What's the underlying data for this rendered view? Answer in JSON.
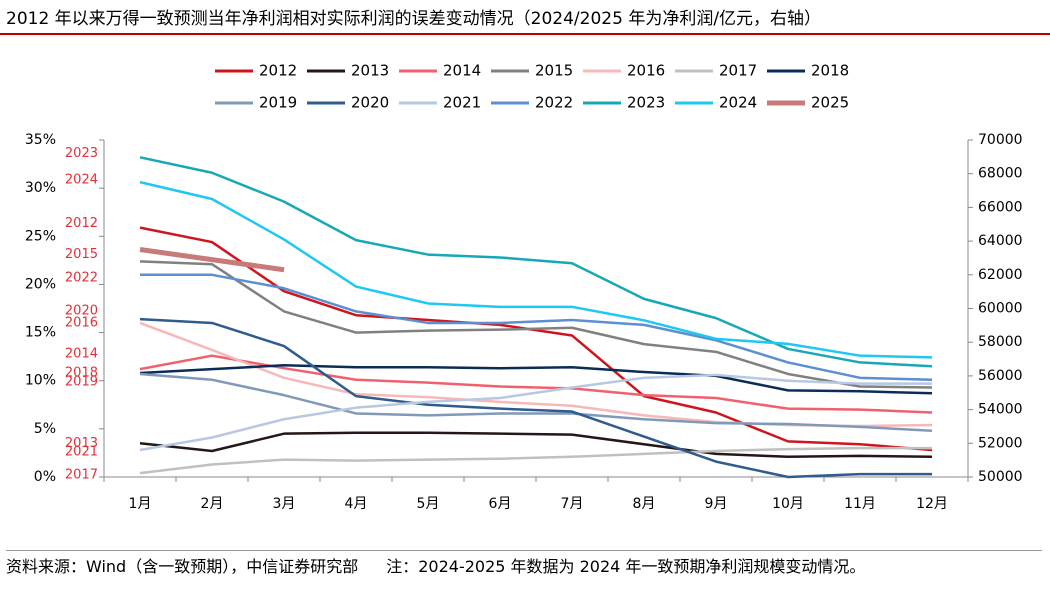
{
  "chart_data": {
    "type": "line",
    "title": "2012 年以来万得一致预测当年净利润相对实际利润的误差变动情况（2024/2025 年为净利润/亿元，右轴）",
    "source": "资料来源：Wind（含一致预期），中信证券研究部",
    "note": "注：2024-2025 年数据为 2024 年一致预期净利润规模变动情况。",
    "categories": [
      "1月",
      "2月",
      "3月",
      "4月",
      "5月",
      "6月",
      "7月",
      "8月",
      "9月",
      "10月",
      "11月",
      "12月"
    ],
    "ylim": [
      0,
      35
    ],
    "yticks": [
      {
        "value": 0,
        "label": "0%"
      },
      {
        "value": 5,
        "label": "5%"
      },
      {
        "value": 10,
        "label": "10%"
      },
      {
        "value": 15,
        "label": "15%"
      },
      {
        "value": 20,
        "label": "20%"
      },
      {
        "value": 25,
        "label": "25%"
      },
      {
        "value": 30,
        "label": "30%"
      },
      {
        "value": 35,
        "label": "35%"
      }
    ],
    "y2lim": [
      50000,
      70000
    ],
    "y2ticks": [
      50000,
      52000,
      54000,
      56000,
      58000,
      60000,
      62000,
      64000,
      66000,
      68000,
      70000
    ],
    "series": [
      {
        "name": "2012",
        "color": "#d0141e",
        "values": [
          25.9,
          24.4,
          19.3,
          16.8,
          16.3,
          15.8,
          14.7,
          8.4,
          6.7,
          3.7,
          3.4,
          2.8
        ]
      },
      {
        "name": "2013",
        "color": "#231815",
        "values": [
          3.5,
          2.7,
          4.5,
          4.6,
          4.6,
          4.5,
          4.4,
          3.4,
          2.4,
          2.1,
          2.2,
          2.1
        ]
      },
      {
        "name": "2014",
        "color": "#f0606e",
        "values": [
          11.2,
          12.6,
          11.3,
          10.1,
          9.8,
          9.4,
          9.2,
          8.5,
          8.2,
          7.1,
          7.0,
          6.7
        ]
      },
      {
        "name": "2015",
        "color": "#808080",
        "values": [
          22.4,
          22.1,
          17.2,
          15.0,
          15.2,
          15.3,
          15.5,
          13.8,
          13.0,
          10.7,
          9.4,
          9.3
        ]
      },
      {
        "name": "2016",
        "color": "#f6b8b8",
        "values": [
          16.0,
          13.2,
          10.3,
          8.6,
          8.3,
          7.8,
          7.4,
          6.4,
          5.7,
          5.4,
          5.3,
          5.4
        ]
      },
      {
        "name": "2017",
        "color": "#c0c0c0",
        "values": [
          0.4,
          1.3,
          1.8,
          1.7,
          1.8,
          1.9,
          2.1,
          2.4,
          2.7,
          2.9,
          3.0,
          3.0
        ]
      },
      {
        "name": "2018",
        "color": "#0c2c58",
        "values": [
          10.8,
          11.2,
          11.6,
          11.4,
          11.4,
          11.3,
          11.4,
          10.9,
          10.5,
          9.0,
          8.9,
          8.7
        ]
      },
      {
        "name": "2019",
        "color": "#8099b8",
        "values": [
          10.7,
          10.1,
          8.5,
          6.6,
          6.4,
          6.6,
          6.6,
          6.0,
          5.6,
          5.5,
          5.2,
          4.8
        ]
      },
      {
        "name": "2020",
        "color": "#2f5b8e",
        "values": [
          16.4,
          16.0,
          13.6,
          8.4,
          7.5,
          7.1,
          6.8,
          4.2,
          1.6,
          0.0,
          0.3,
          0.3
        ]
      },
      {
        "name": "2021",
        "color": "#b6c8e2",
        "values": [
          2.8,
          4.1,
          6.0,
          7.2,
          7.8,
          8.2,
          9.3,
          10.3,
          10.6,
          10.0,
          9.7,
          9.7
        ]
      },
      {
        "name": "2022",
        "color": "#5b8fd0",
        "values": [
          21.0,
          21.0,
          19.6,
          17.2,
          16.0,
          16.0,
          16.3,
          15.8,
          14.2,
          11.9,
          10.3,
          10.1
        ]
      },
      {
        "name": "2023",
        "color": "#17a8b8",
        "values": [
          33.2,
          31.6,
          28.6,
          24.6,
          23.1,
          22.8,
          22.2,
          18.5,
          16.5,
          13.3,
          11.9,
          11.5
        ]
      },
      {
        "name": "2024",
        "color": "#1ec8f2",
        "axis": "y2",
        "values": [
          67500,
          66500,
          64100,
          61300,
          60300,
          60100,
          60100,
          59300,
          58200,
          57900,
          57200,
          57100
        ]
      },
      {
        "name": "2025",
        "color": "#c87a78",
        "axis": "y2",
        "values": [
          63500,
          62900,
          62300,
          null,
          null,
          null,
          null,
          null,
          null,
          null,
          null,
          null
        ]
      }
    ]
  }
}
